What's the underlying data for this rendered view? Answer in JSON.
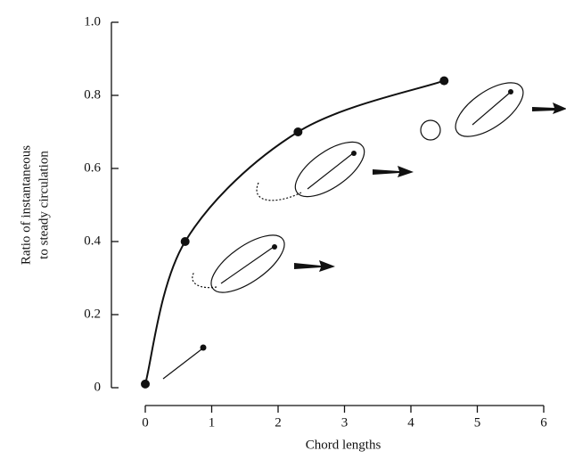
{
  "chart_data": {
    "type": "line",
    "x_label": "Chord lengths",
    "y_label": [
      "Ratio of instantaneous",
      "to steady circulation"
    ],
    "x": [
      0,
      0.6,
      2.3,
      4.5
    ],
    "series": [
      {
        "color": "#111111",
        "values": [
          0.01,
          0.4,
          0.7,
          0.84
        ]
      }
    ],
    "markers": true,
    "xlim": [
      0,
      6
    ],
    "xticks": [
      0,
      1,
      2,
      3,
      4,
      5,
      6
    ],
    "ylim": [
      0,
      1
    ],
    "yticks": [
      0,
      0.2,
      0.4,
      0.6,
      0.8,
      {
        "value": 1,
        "label": "1.0"
      }
    ],
    "grid": false
  }
}
